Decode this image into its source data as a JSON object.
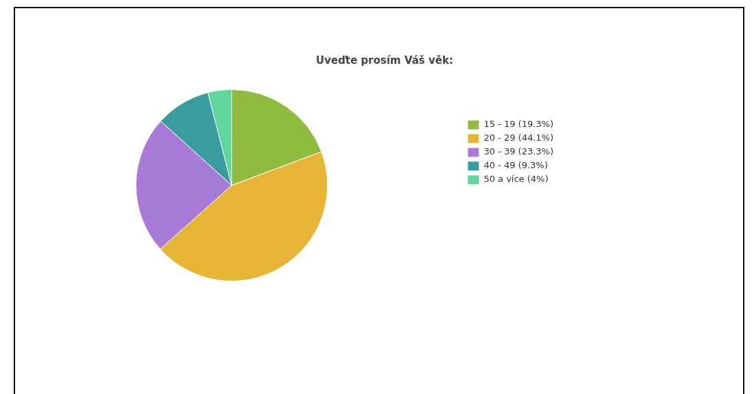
{
  "chart_data": {
    "type": "pie",
    "title": "Uveďte prosím Váš věk:",
    "categories": [
      "15 - 19 (19.3%)",
      "20 - 29 (44.1%)",
      "30 - 39 (23.3%)",
      "40 - 49 (9.3%)",
      "50 a více (4%)"
    ],
    "values": [
      19.3,
      44.1,
      23.3,
      9.3,
      4
    ],
    "colors": [
      "#8fbb3e",
      "#e6b536",
      "#a87bd8",
      "#3a9c9e",
      "#5fd69c"
    ],
    "legend": "right"
  }
}
